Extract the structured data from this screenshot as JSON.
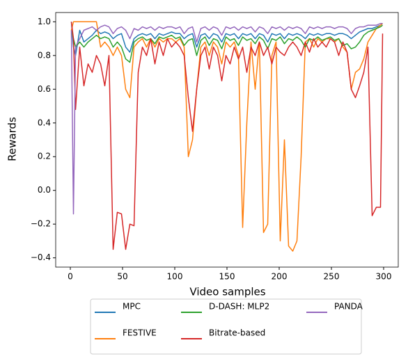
{
  "chart_data": {
    "type": "line",
    "xlabel": "Video samples",
    "ylabel": "Rewards",
    "x": [
      1,
      3,
      5,
      9,
      13,
      17,
      21,
      25,
      29,
      33,
      37,
      41,
      45,
      49,
      53,
      57,
      61,
      65,
      69,
      73,
      77,
      81,
      85,
      89,
      93,
      97,
      101,
      105,
      109,
      113,
      117,
      121,
      125,
      129,
      133,
      137,
      141,
      145,
      149,
      153,
      157,
      161,
      165,
      169,
      173,
      177,
      181,
      185,
      189,
      193,
      197,
      201,
      205,
      209,
      213,
      217,
      221,
      225,
      229,
      233,
      237,
      241,
      245,
      249,
      253,
      257,
      261,
      265,
      269,
      273,
      277,
      281,
      285,
      289,
      293,
      297,
      299
    ],
    "series": [
      {
        "name": "MPC",
        "color": "#1f77b4",
        "values": [
          1.0,
          0.85,
          0.8,
          0.95,
          0.88,
          0.9,
          0.92,
          0.95,
          0.93,
          0.94,
          0.93,
          0.9,
          0.92,
          0.93,
          0.85,
          0.82,
          0.9,
          0.92,
          0.93,
          0.92,
          0.93,
          0.9,
          0.93,
          0.92,
          0.93,
          0.94,
          0.93,
          0.93,
          0.9,
          0.92,
          0.93,
          0.85,
          0.92,
          0.93,
          0.9,
          0.93,
          0.92,
          0.88,
          0.93,
          0.92,
          0.93,
          0.9,
          0.93,
          0.92,
          0.93,
          0.9,
          0.93,
          0.92,
          0.88,
          0.93,
          0.92,
          0.93,
          0.9,
          0.93,
          0.92,
          0.93,
          0.92,
          0.9,
          0.93,
          0.92,
          0.93,
          0.92,
          0.93,
          0.93,
          0.92,
          0.93,
          0.93,
          0.92,
          0.9,
          0.92,
          0.94,
          0.95,
          0.96,
          0.96,
          0.97,
          0.98,
          0.99
        ]
      },
      {
        "name": "FESTIVE",
        "color": "#ff7f0e",
        "values": [
          0.95,
          1.0,
          1.0,
          1.0,
          1.0,
          1.0,
          1.0,
          1.0,
          0.85,
          0.88,
          0.85,
          0.8,
          0.85,
          0.8,
          0.6,
          0.55,
          0.85,
          0.88,
          0.9,
          0.85,
          0.9,
          0.85,
          0.9,
          0.88,
          0.9,
          0.9,
          0.88,
          0.9,
          0.85,
          0.2,
          0.3,
          0.6,
          0.85,
          0.88,
          0.8,
          0.88,
          0.85,
          0.75,
          0.88,
          0.85,
          0.88,
          0.8,
          -0.22,
          0.4,
          0.88,
          0.6,
          0.88,
          -0.25,
          -0.2,
          0.8,
          0.88,
          -0.3,
          0.3,
          -0.33,
          -0.36,
          -0.3,
          0.2,
          0.88,
          0.9,
          0.85,
          0.9,
          0.88,
          0.9,
          0.9,
          0.88,
          0.9,
          0.85,
          0.82,
          0.6,
          0.7,
          0.72,
          0.78,
          0.88,
          0.92,
          0.96,
          0.98,
          0.99
        ]
      },
      {
        "name": "D-DASH: MLP2",
        "color": "#2ca02c",
        "values": [
          0.95,
          0.9,
          0.85,
          0.88,
          0.85,
          0.88,
          0.9,
          0.92,
          0.9,
          0.91,
          0.9,
          0.85,
          0.88,
          0.85,
          0.78,
          0.76,
          0.88,
          0.9,
          0.91,
          0.89,
          0.9,
          0.87,
          0.91,
          0.9,
          0.91,
          0.92,
          0.9,
          0.91,
          0.86,
          0.89,
          0.9,
          0.8,
          0.89,
          0.91,
          0.86,
          0.9,
          0.89,
          0.84,
          0.91,
          0.89,
          0.9,
          0.86,
          0.91,
          0.89,
          0.9,
          0.87,
          0.91,
          0.89,
          0.84,
          0.9,
          0.89,
          0.91,
          0.87,
          0.9,
          0.89,
          0.91,
          0.89,
          0.85,
          0.9,
          0.89,
          0.91,
          0.89,
          0.9,
          0.91,
          0.89,
          0.9,
          0.86,
          0.87,
          0.84,
          0.85,
          0.88,
          0.92,
          0.94,
          0.95,
          0.96,
          0.97,
          0.98
        ]
      },
      {
        "name": "Bitrate-based",
        "color": "#d62728",
        "values": [
          1.0,
          0.9,
          0.48,
          0.85,
          0.62,
          0.75,
          0.7,
          0.8,
          0.75,
          0.62,
          0.8,
          -0.35,
          -0.13,
          -0.14,
          -0.35,
          -0.2,
          -0.21,
          0.7,
          0.85,
          0.8,
          0.9,
          0.75,
          0.88,
          0.8,
          0.9,
          0.85,
          0.88,
          0.85,
          0.8,
          0.55,
          0.35,
          0.6,
          0.8,
          0.85,
          0.72,
          0.85,
          0.8,
          0.65,
          0.8,
          0.75,
          0.85,
          0.78,
          0.85,
          0.7,
          0.85,
          0.8,
          0.88,
          0.8,
          0.85,
          0.75,
          0.85,
          0.82,
          0.8,
          0.85,
          0.88,
          0.85,
          0.8,
          0.88,
          0.82,
          0.9,
          0.85,
          0.88,
          0.85,
          0.9,
          0.88,
          0.8,
          0.88,
          0.82,
          0.6,
          0.55,
          0.62,
          0.7,
          0.85,
          -0.15,
          -0.1,
          -0.1,
          0.93
        ]
      },
      {
        "name": "PANDA",
        "color": "#9467bd",
        "values": [
          0.95,
          -0.14,
          0.85,
          0.9,
          0.95,
          0.96,
          0.97,
          0.95,
          0.97,
          0.98,
          0.97,
          0.93,
          0.96,
          0.97,
          0.95,
          0.9,
          0.96,
          0.95,
          0.97,
          0.96,
          0.97,
          0.95,
          0.97,
          0.96,
          0.97,
          0.97,
          0.96,
          0.97,
          0.93,
          0.96,
          0.97,
          0.88,
          0.96,
          0.97,
          0.95,
          0.97,
          0.96,
          0.92,
          0.97,
          0.96,
          0.97,
          0.95,
          0.97,
          0.96,
          0.97,
          0.94,
          0.97,
          0.96,
          0.93,
          0.97,
          0.96,
          0.97,
          0.95,
          0.97,
          0.96,
          0.97,
          0.96,
          0.93,
          0.97,
          0.96,
          0.97,
          0.96,
          0.97,
          0.97,
          0.96,
          0.97,
          0.97,
          0.96,
          0.93,
          0.96,
          0.97,
          0.97,
          0.98,
          0.98,
          0.98,
          0.99,
          0.99
        ]
      }
    ],
    "xlim": [
      -14,
      314
    ],
    "xticks": [
      0,
      50,
      100,
      150,
      200,
      250,
      300
    ],
    "ylim": [
      -0.455,
      1.055
    ],
    "yticks": [
      {
        "value": -0.4,
        "label": "−0.4"
      },
      {
        "value": -0.2,
        "label": "−0.2"
      },
      {
        "value": 0.0,
        "label": "0.0"
      },
      {
        "value": 0.2,
        "label": "0.2"
      },
      {
        "value": 0.4,
        "label": "0.4"
      },
      {
        "value": 0.6,
        "label": "0.6"
      },
      {
        "value": 0.8,
        "label": "0.8"
      },
      {
        "value": 1.0,
        "label": "1.0"
      }
    ],
    "legend": "bottom",
    "legend_columns": 3,
    "grid": false
  }
}
